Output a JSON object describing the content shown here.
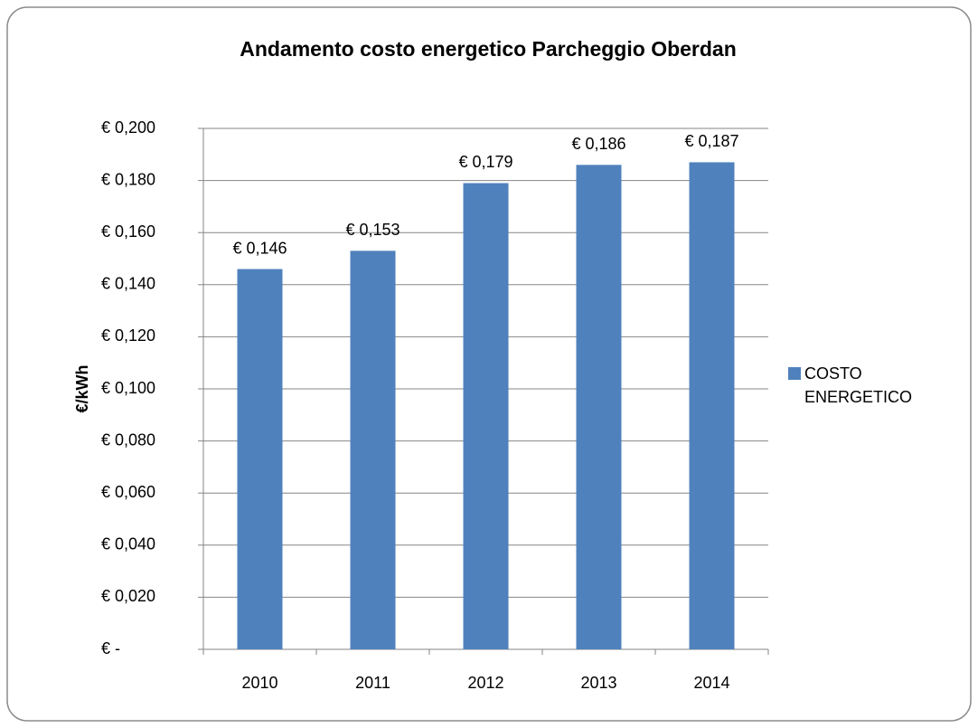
{
  "chart_data": {
    "type": "bar",
    "title": "Andamento costo energetico Parcheggio Oberdan",
    "ylabel": "€/kWh",
    "categories": [
      "2010",
      "2011",
      "2012",
      "2013",
      "2014"
    ],
    "series": [
      {
        "name": "COSTO ENERGETICO",
        "color": "#4f81bd",
        "values": [
          0.146,
          0.153,
          0.179,
          0.186,
          0.187
        ],
        "value_labels": [
          "€ 0,146",
          "€ 0,153",
          "€ 0,179",
          "€ 0,186",
          "€ 0,187"
        ]
      }
    ],
    "ylim": [
      0,
      0.2
    ],
    "yticks": [
      {
        "value": 0,
        "label": "€ -"
      },
      {
        "value": 0.02,
        "label": "€ 0,020"
      },
      {
        "value": 0.04,
        "label": "€ 0,040"
      },
      {
        "value": 0.06,
        "label": "€ 0,060"
      },
      {
        "value": 0.08,
        "label": "€ 0,080"
      },
      {
        "value": 0.1,
        "label": "€ 0,100"
      },
      {
        "value": 0.12,
        "label": "€ 0,120"
      },
      {
        "value": 0.14,
        "label": "€ 0,140"
      },
      {
        "value": 0.16,
        "label": "€ 0,160"
      },
      {
        "value": 0.18,
        "label": "€ 0,180"
      },
      {
        "value": 0.2,
        "label": "€ 0,200"
      }
    ],
    "grid": true,
    "legend": "right"
  }
}
